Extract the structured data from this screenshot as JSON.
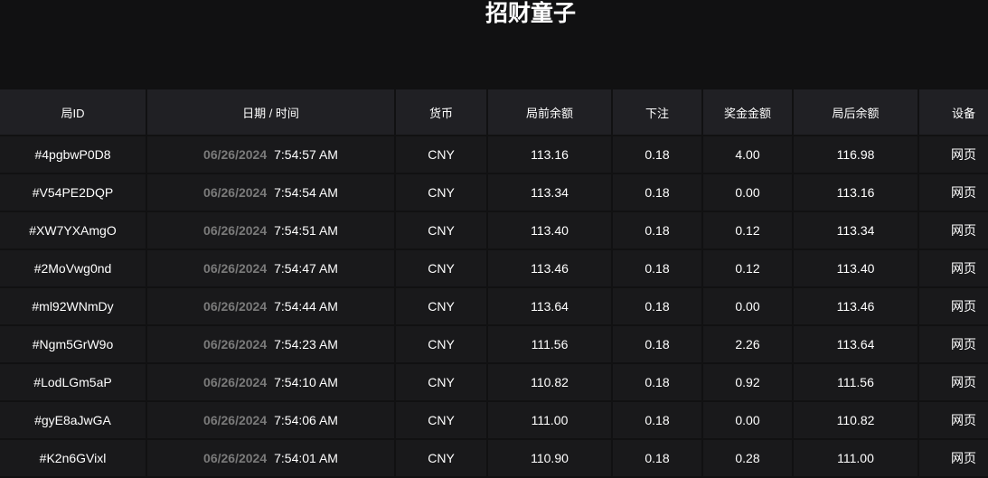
{
  "title": "招财童子",
  "headers": [
    "局ID",
    "日期 / 时间",
    "货币",
    "局前余额",
    "下注",
    "奖金金额",
    "局后余额",
    "设备"
  ],
  "rows": [
    {
      "id": "#4pgbwP0D8",
      "date": "06/26/2024",
      "time": "7:54:57 AM",
      "currency": "CNY",
      "before": "113.16",
      "bet": "0.18",
      "win": "4.00",
      "after": "116.98",
      "device": "网页"
    },
    {
      "id": "#V54PE2DQP",
      "date": "06/26/2024",
      "time": "7:54:54 AM",
      "currency": "CNY",
      "before": "113.34",
      "bet": "0.18",
      "win": "0.00",
      "after": "113.16",
      "device": "网页"
    },
    {
      "id": "#XW7YXAmgO",
      "date": "06/26/2024",
      "time": "7:54:51 AM",
      "currency": "CNY",
      "before": "113.40",
      "bet": "0.18",
      "win": "0.12",
      "after": "113.34",
      "device": "网页"
    },
    {
      "id": "#2MoVwg0nd",
      "date": "06/26/2024",
      "time": "7:54:47 AM",
      "currency": "CNY",
      "before": "113.46",
      "bet": "0.18",
      "win": "0.12",
      "after": "113.40",
      "device": "网页"
    },
    {
      "id": "#ml92WNmDy",
      "date": "06/26/2024",
      "time": "7:54:44 AM",
      "currency": "CNY",
      "before": "113.64",
      "bet": "0.18",
      "win": "0.00",
      "after": "113.46",
      "device": "网页"
    },
    {
      "id": "#Ngm5GrW9o",
      "date": "06/26/2024",
      "time": "7:54:23 AM",
      "currency": "CNY",
      "before": "111.56",
      "bet": "0.18",
      "win": "2.26",
      "after": "113.64",
      "device": "网页"
    },
    {
      "id": "#LodLGm5aP",
      "date": "06/26/2024",
      "time": "7:54:10 AM",
      "currency": "CNY",
      "before": "110.82",
      "bet": "0.18",
      "win": "0.92",
      "after": "111.56",
      "device": "网页"
    },
    {
      "id": "#gyE8aJwGA",
      "date": "06/26/2024",
      "time": "7:54:06 AM",
      "currency": "CNY",
      "before": "111.00",
      "bet": "0.18",
      "win": "0.00",
      "after": "110.82",
      "device": "网页"
    },
    {
      "id": "#K2n6GVixl",
      "date": "06/26/2024",
      "time": "7:54:01 AM",
      "currency": "CNY",
      "before": "110.90",
      "bet": "0.18",
      "win": "0.28",
      "after": "111.00",
      "device": "网页"
    }
  ]
}
